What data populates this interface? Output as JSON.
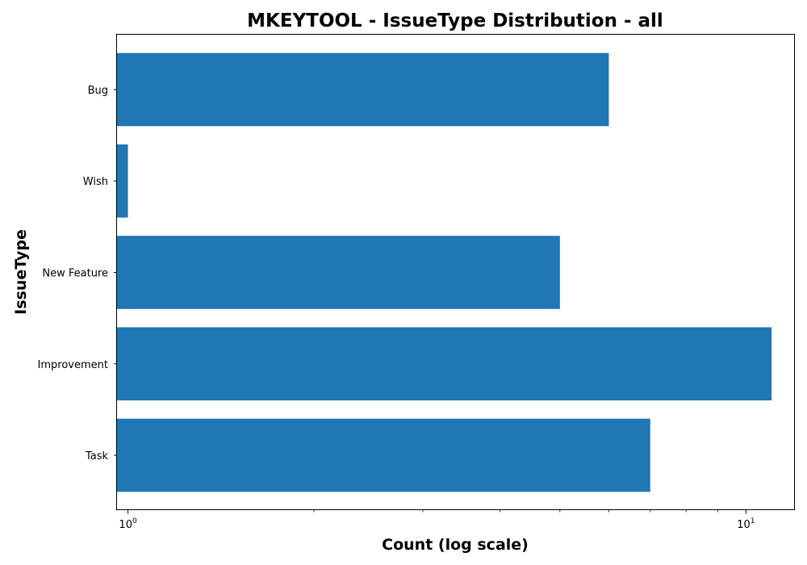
{
  "chart_data": {
    "type": "bar",
    "orientation": "horizontal",
    "title": "MKEYTOOL - IssueType Distribution - all",
    "xlabel": "Count (log scale)",
    "ylabel": "IssueType",
    "x_scale": "log",
    "xlim": [
      0.96,
      12
    ],
    "x_ticks": [
      {
        "value": 1,
        "base": "10",
        "exp": "0"
      },
      {
        "value": 10,
        "base": "10",
        "exp": "1"
      }
    ],
    "categories": [
      "Bug",
      "Wish",
      "New Feature",
      "Improvement",
      "Task"
    ],
    "values": [
      6,
      1,
      5,
      11,
      7
    ],
    "bar_color": "#1f77b4",
    "grid": false,
    "legend": "none"
  }
}
